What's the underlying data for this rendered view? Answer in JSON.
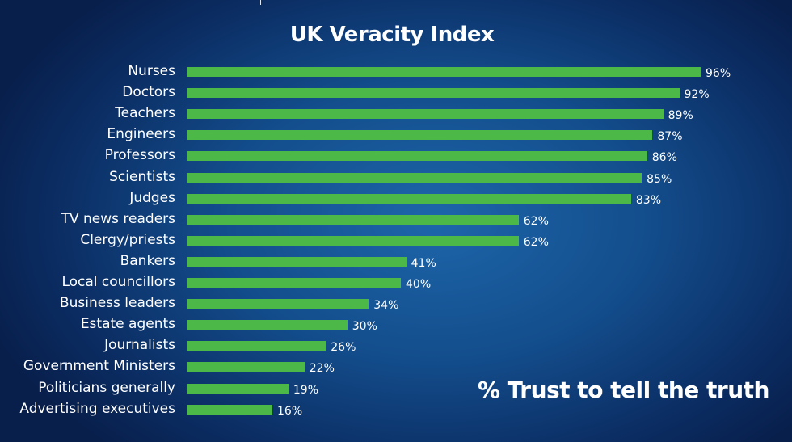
{
  "chart_data": {
    "type": "bar",
    "orientation": "horizontal",
    "title": "UK Veracity Index",
    "annotation": "% Trust to tell the truth",
    "categories": [
      "Nurses",
      "Doctors",
      "Teachers",
      "Engineers",
      "Professors",
      "Scientists",
      "Judges",
      "TV news readers",
      "Clergy/priests",
      "Bankers",
      "Local councillors",
      "Business leaders",
      "Estate agents",
      "Journalists",
      "Government Ministers",
      "Politicians generally",
      "Advertising executives"
    ],
    "values": [
      96,
      92,
      89,
      87,
      86,
      85,
      83,
      62,
      62,
      41,
      40,
      34,
      30,
      26,
      22,
      19,
      16
    ],
    "value_suffix": "%",
    "xlim": [
      0,
      100
    ],
    "bar_color": "#4cb847",
    "grid": false
  }
}
